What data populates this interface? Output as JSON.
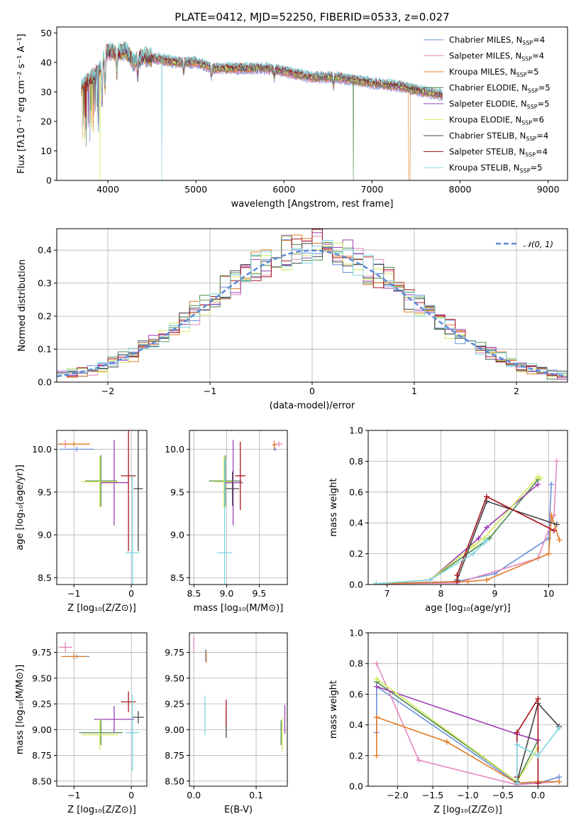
{
  "title": "PLATE=0412, MJD=52250, FIBERID=0533, z=0.027",
  "colors": {
    "Chabrier MILES": "#6a8fd8",
    "Salpeter MILES": "#e589be",
    "Kroupa MILES": "#e07b25",
    "Chabrier ELODIE": "#4c8a4c",
    "Salpeter ELODIE": "#9b3fb3",
    "Kroupa ELODIE": "#d2ea5a",
    "Chabrier STELIB": "#444444",
    "Salpeter STELIB": "#a8141c",
    "Kroupa STELIB": "#7fd6de",
    "normal_curve": "#5a8ad6"
  },
  "legend_entries": [
    {
      "model": "Chabrier MILES",
      "prefix": "Chabrier MILES, N",
      "sub": "SSP",
      "suffix": "=4"
    },
    {
      "model": "Salpeter MILES",
      "prefix": "Salpeter MILES, N",
      "sub": "SSP",
      "suffix": "=4"
    },
    {
      "model": "Kroupa MILES",
      "prefix": "Kroupa MILES, N",
      "sub": "SSP",
      "suffix": "=5"
    },
    {
      "model": "Chabrier ELODIE",
      "prefix": "Chabrier ELODIE, N",
      "sub": "SSP",
      "suffix": "=5"
    },
    {
      "model": "Salpeter ELODIE",
      "prefix": "Salpeter ELODIE, N",
      "sub": "SSP",
      "suffix": "=5"
    },
    {
      "model": "Kroupa ELODIE",
      "prefix": "Kroupa ELODIE, N",
      "sub": "SSP",
      "suffix": "=6"
    },
    {
      "model": "Chabrier STELIB",
      "prefix": "Chabrier STELIB, N",
      "sub": "SSP",
      "suffix": "=4"
    },
    {
      "model": "Salpeter STELIB",
      "prefix": "Salpeter STELIB, N",
      "sub": "SSP",
      "suffix": "=4"
    },
    {
      "model": "Kroupa STELIB",
      "prefix": "Kroupa STELIB, N",
      "sub": "SSP",
      "suffix": "=5"
    }
  ],
  "chart_data": [
    {
      "id": "spectrum",
      "type": "line",
      "xlabel": "wavelength [Angstrom, rest frame]",
      "ylabel": "Flux [fλ10⁻¹⁷ erg cm⁻² s⁻¹ A⁻¹]",
      "xlim": [
        3420,
        9220
      ],
      "ylim": [
        0,
        52
      ],
      "xticks": [
        4000,
        5000,
        6000,
        7000,
        8000,
        9000
      ],
      "yticks": [
        0,
        10,
        20,
        30,
        40,
        50
      ],
      "grid": false,
      "legend": "top-right",
      "continuum": [
        [
          3700,
          31
        ],
        [
          3800,
          34
        ],
        [
          3900,
          37
        ],
        [
          4000,
          44
        ],
        [
          4100,
          43
        ],
        [
          4200,
          44
        ],
        [
          4300,
          40
        ],
        [
          4400,
          42
        ],
        [
          4600,
          41
        ],
        [
          4800,
          40
        ],
        [
          5000,
          40
        ],
        [
          5200,
          38
        ],
        [
          5500,
          38
        ],
        [
          5800,
          38
        ],
        [
          6000,
          37
        ],
        [
          6300,
          35
        ],
        [
          6600,
          35
        ],
        [
          7000,
          33
        ],
        [
          7300,
          32
        ],
        [
          7600,
          30
        ],
        [
          7800,
          29
        ]
      ],
      "end_wavelength": 7800
    },
    {
      "id": "residuals",
      "type": "histogram",
      "xlabel": "(data-model)/error",
      "ylabel": "Normed distribution",
      "xlim": [
        -2.5,
        2.5
      ],
      "ylim": [
        0,
        0.465
      ],
      "xticks": [
        -2,
        -1,
        0,
        1,
        2
      ],
      "yticks": [
        0,
        0.1,
        0.2,
        0.3,
        0.4
      ],
      "grid": true,
      "legend": "top-right",
      "legend_label": "𝒩(0, 1)",
      "bin_width": 0.1,
      "normal": {
        "mu": 0,
        "sigma": 1
      }
    },
    {
      "id": "age_vs_Z",
      "type": "errorbar",
      "xlabel": "Z [log₁₀(Z/Z⊙)]",
      "ylabel": "age  [log₁₀(age/yr)]",
      "xlim": [
        -1.3,
        0.27
      ],
      "ylim": [
        8.42,
        10.22
      ],
      "xticks": [
        -1,
        0
      ],
      "yticks": [
        8.5,
        9.0,
        9.5,
        10.0
      ],
      "grid": true,
      "points": [
        {
          "model": "Chabrier MILES",
          "x": -0.95,
          "y": 10.0,
          "xerr": 0.3,
          "yerr": 0.03
        },
        {
          "model": "Salpeter MILES",
          "x": -1.15,
          "y": 10.06,
          "xerr": 0.08,
          "yerr": 0.05
        },
        {
          "model": "Kroupa MILES",
          "x": -1.0,
          "y": 10.06,
          "xerr": 0.28,
          "yerr": 0.03
        },
        {
          "model": "Chabrier ELODIE",
          "x": -0.53,
          "y": 9.63,
          "xerr": 0.28,
          "yerr": 0.3
        },
        {
          "model": "Salpeter ELODIE",
          "x": -0.3,
          "y": 9.61,
          "xerr": 0.25,
          "yerr": 0.5
        },
        {
          "model": "Kroupa ELODIE",
          "x": -0.55,
          "y": 9.62,
          "xerr": 0.32,
          "yerr": 0.3
        },
        {
          "model": "Chabrier STELIB",
          "x": 0.12,
          "y": 9.54,
          "xerr": 0.08,
          "yerr": 0.73
        },
        {
          "model": "Salpeter STELIB",
          "x": -0.05,
          "y": 9.69,
          "xerr": 0.13,
          "yerr": 0.88
        },
        {
          "model": "Kroupa STELIB",
          "x": 0.02,
          "y": 8.79,
          "xerr": 0.12,
          "yerr": 0.9
        }
      ]
    },
    {
      "id": "age_vs_mass",
      "type": "errorbar",
      "xlabel": "mass [log₁₀(M/M⊙)]",
      "ylabel": "",
      "xlim": [
        8.43,
        9.93
      ],
      "ylim": [
        8.42,
        10.22
      ],
      "xticks": [
        8.5,
        9.0,
        9.5
      ],
      "yticks": [
        8.5,
        9.0,
        9.5,
        10.0
      ],
      "grid": true,
      "points": [
        {
          "model": "Chabrier MILES",
          "x": 9.74,
          "y": 10.0,
          "xerr": 0.03,
          "yerr": 0.02
        },
        {
          "model": "Salpeter MILES",
          "x": 9.8,
          "y": 10.06,
          "xerr": 0.06,
          "yerr": 0.03
        },
        {
          "model": "Kroupa MILES",
          "x": 9.73,
          "y": 10.05,
          "xerr": 0.03,
          "yerr": 0.05
        },
        {
          "model": "Chabrier ELODIE",
          "x": 8.98,
          "y": 9.63,
          "xerr": 0.25,
          "yerr": 0.3
        },
        {
          "model": "Salpeter ELODIE",
          "x": 9.1,
          "y": 9.61,
          "xerr": 0.15,
          "yerr": 0.5
        },
        {
          "model": "Kroupa ELODIE",
          "x": 8.96,
          "y": 9.62,
          "xerr": 0.15,
          "yerr": 0.3
        },
        {
          "model": "Chabrier STELIB",
          "x": 9.09,
          "y": 9.54,
          "xerr": 0.1,
          "yerr": 0.2
        },
        {
          "model": "Salpeter STELIB",
          "x": 9.21,
          "y": 9.69,
          "xerr": 0.08,
          "yerr": 0.4
        },
        {
          "model": "Kroupa STELIB",
          "x": 8.97,
          "y": 8.79,
          "xerr": 0.12,
          "yerr": 1.1
        }
      ]
    },
    {
      "id": "weight_vs_age",
      "type": "line",
      "xlabel": "age  [log₁₀(age/yr)]",
      "ylabel": "mass weight",
      "xlim": [
        6.65,
        10.35
      ],
      "ylim": [
        0,
        1
      ],
      "xticks": [
        7,
        8,
        9,
        10
      ],
      "yticks": [
        0,
        0.2,
        0.4,
        0.6,
        0.8,
        1.0
      ],
      "grid": true,
      "series": [
        {
          "model": "Chabrier MILES",
          "x": [
            6.8,
            8.3,
            9.0,
            10.0,
            10.05
          ],
          "y": [
            0.005,
            0.02,
            0.07,
            0.3,
            0.65
          ]
        },
        {
          "model": "Salpeter MILES",
          "x": [
            6.8,
            8.3,
            9.8,
            10.1,
            10.15
          ],
          "y": [
            0.005,
            0.01,
            0.17,
            0.45,
            0.8
          ]
        },
        {
          "model": "Kroupa MILES",
          "x": [
            6.8,
            8.5,
            8.85,
            10.0,
            10.05,
            10.2
          ],
          "y": [
            0.005,
            0.02,
            0.03,
            0.2,
            0.45,
            0.29
          ]
        },
        {
          "model": "Chabrier ELODIE",
          "x": [
            6.8,
            7.8,
            8.9,
            9.8
          ],
          "y": [
            0.005,
            0.03,
            0.3,
            0.68
          ]
        },
        {
          "model": "Salpeter ELODIE",
          "x": [
            6.8,
            7.8,
            8.7,
            8.85,
            9.8
          ],
          "y": [
            0.005,
            0.03,
            0.3,
            0.37,
            0.65
          ]
        },
        {
          "model": "Kroupa ELODIE",
          "x": [
            6.8,
            7.8,
            8.6,
            8.8,
            9.8,
            9.85
          ],
          "y": [
            0.005,
            0.03,
            0.25,
            0.3,
            0.7,
            0.69
          ]
        },
        {
          "model": "Chabrier STELIB",
          "x": [
            8.3,
            8.85,
            10.15
          ],
          "y": [
            0.03,
            0.54,
            0.39
          ]
        },
        {
          "model": "Salpeter STELIB",
          "x": [
            8.3,
            8.3,
            8.85,
            10.1
          ],
          "y": [
            0.02,
            0.06,
            0.57,
            0.35
          ]
        },
        {
          "model": "Kroupa STELIB",
          "x": [
            6.8,
            7.8,
            8.6,
            8.8,
            8.85
          ],
          "y": [
            0.005,
            0.03,
            0.2,
            0.27,
            0.29
          ]
        }
      ]
    },
    {
      "id": "mass_vs_Z",
      "type": "errorbar",
      "xlabel": "Z [log₁₀(Z/Z⊙)]",
      "ylabel": "mass [log₁₀(M/M⊙)]",
      "xlim": [
        -1.3,
        0.27
      ],
      "ylim": [
        8.45,
        9.94
      ],
      "xticks": [
        -1,
        0
      ],
      "yticks": [
        8.5,
        8.75,
        9.0,
        9.25,
        9.5,
        9.75
      ],
      "grid": true,
      "points": [
        {
          "model": "Chabrier MILES",
          "x": -0.95,
          "y": 9.71,
          "xerr": 0.22,
          "yerr": 0.02
        },
        {
          "model": "Salpeter MILES",
          "x": -1.15,
          "y": 9.8,
          "xerr": 0.12,
          "yerr": 0.05
        },
        {
          "model": "Kroupa MILES",
          "x": -1.0,
          "y": 9.71,
          "xerr": 0.22,
          "yerr": 0.03
        },
        {
          "model": "Chabrier ELODIE",
          "x": -0.53,
          "y": 8.97,
          "xerr": 0.38,
          "yerr": 0.12
        },
        {
          "model": "Salpeter ELODIE",
          "x": -0.3,
          "y": 9.1,
          "xerr": 0.35,
          "yerr": 0.13
        },
        {
          "model": "Kroupa ELODIE",
          "x": -0.55,
          "y": 8.95,
          "xerr": 0.32,
          "yerr": 0.15
        },
        {
          "model": "Chabrier STELIB",
          "x": 0.12,
          "y": 9.12,
          "xerr": 0.1,
          "yerr": 0.06
        },
        {
          "model": "Salpeter STELIB",
          "x": -0.05,
          "y": 9.27,
          "xerr": 0.13,
          "yerr": 0.1
        },
        {
          "model": "Kroupa STELIB",
          "x": 0.02,
          "y": 8.97,
          "xerr": 0.12,
          "yerr": 0.37
        }
      ]
    },
    {
      "id": "mass_vs_EBV",
      "type": "errorbar",
      "xlabel": "E(B-V)",
      "ylabel": "",
      "xlim": [
        -0.007,
        0.15
      ],
      "ylim": [
        8.45,
        9.94
      ],
      "xticks": [
        0.0,
        0.1
      ],
      "yticks": [
        8.5,
        8.75,
        9.0,
        9.25,
        9.5,
        9.75
      ],
      "grid": true,
      "points": [
        {
          "model": "Chabrier MILES",
          "x": 0.019,
          "y": 9.72,
          "xerr": 0,
          "yerr": 0.06
        },
        {
          "model": "Salpeter MILES",
          "x": 0.0,
          "y": 9.82,
          "xerr": 0,
          "yerr": 0.07
        },
        {
          "model": "Kroupa MILES",
          "x": 0.02,
          "y": 9.71,
          "xerr": 0,
          "yerr": 0.06
        },
        {
          "model": "Chabrier ELODIE",
          "x": 0.14,
          "y": 8.97,
          "xerr": 0,
          "yerr": 0.12
        },
        {
          "model": "Salpeter ELODIE",
          "x": 0.146,
          "y": 9.1,
          "xerr": 0,
          "yerr": 0.14
        },
        {
          "model": "Kroupa ELODIE",
          "x": 0.142,
          "y": 8.95,
          "xerr": 0,
          "yerr": 0.16
        },
        {
          "model": "Chabrier STELIB",
          "x": 0.052,
          "y": 9.06,
          "xerr": 0,
          "yerr": 0.14
        },
        {
          "model": "Salpeter STELIB",
          "x": 0.052,
          "y": 9.16,
          "xerr": 0,
          "yerr": 0.13
        },
        {
          "model": "Kroupa STELIB",
          "x": 0.018,
          "y": 9.14,
          "xerr": 0,
          "yerr": 0.19
        }
      ]
    },
    {
      "id": "weight_vs_Z",
      "type": "line",
      "xlabel": "Z [log₁₀(Z/Z⊙)]",
      "ylabel": "mass weight",
      "xlim": [
        -2.42,
        0.42
      ],
      "ylim": [
        0,
        1
      ],
      "xticks": [
        -2.0,
        -1.5,
        -1.0,
        -0.5,
        0.0
      ],
      "yticks": [
        0,
        0.2,
        0.4,
        0.6,
        0.8,
        1.0
      ],
      "grid": true,
      "series": [
        {
          "model": "Chabrier MILES",
          "x": [
            -2.3,
            -2.3,
            -0.3,
            0.0,
            0.3
          ],
          "y": [
            0.35,
            0.65,
            0.02,
            0.02,
            0.06
          ]
        },
        {
          "model": "Salpeter MILES",
          "x": [
            -2.3,
            -1.7,
            -0.3,
            0.0,
            0.3
          ],
          "y": [
            0.8,
            0.17,
            0.01,
            0.02,
            0.03
          ]
        },
        {
          "model": "Kroupa MILES",
          "x": [
            -2.3,
            -2.3,
            -1.3,
            -0.3,
            0.0,
            0.3
          ],
          "y": [
            0.2,
            0.45,
            0.29,
            0.02,
            0.03,
            0.03
          ]
        },
        {
          "model": "Chabrier ELODIE",
          "x": [
            -2.3,
            -0.3,
            0.0
          ],
          "y": [
            0.68,
            0.03,
            0.3
          ]
        },
        {
          "model": "Salpeter ELODIE",
          "x": [
            -2.3,
            -0.3,
            0.0
          ],
          "y": [
            0.65,
            0.34,
            0.3
          ]
        },
        {
          "model": "Kroupa ELODIE",
          "x": [
            -2.3,
            -0.3,
            0.0
          ],
          "y": [
            0.7,
            0.03,
            0.25
          ]
        },
        {
          "model": "Chabrier STELIB",
          "x": [
            -0.3,
            0.0,
            0.3
          ],
          "y": [
            0.03,
            0.54,
            0.39
          ]
        },
        {
          "model": "Salpeter STELIB",
          "x": [
            -0.3,
            -0.3,
            0.0,
            0.0
          ],
          "y": [
            0.06,
            0.35,
            0.57,
            0.02
          ]
        },
        {
          "model": "Kroupa STELIB",
          "x": [
            -0.3,
            -0.3,
            0.0,
            0.3
          ],
          "y": [
            0.02,
            0.27,
            0.2,
            0.38
          ]
        }
      ]
    }
  ]
}
